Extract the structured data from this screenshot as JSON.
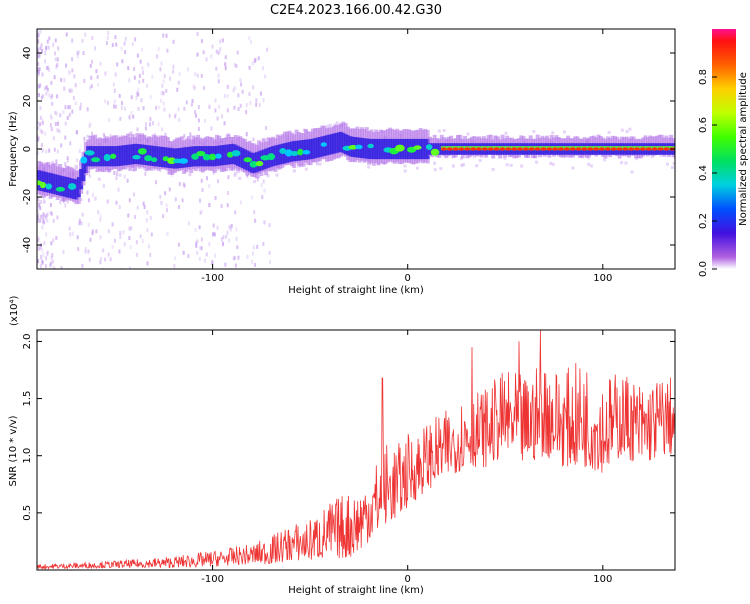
{
  "title": "C2E4.2023.166.00.42.G30",
  "chart_data": [
    {
      "type": "heatmap",
      "xlabel": "Height of straight line (km)",
      "ylabel": "Frequency (Hz)",
      "xlim": [
        -190,
        137
      ],
      "ylim": [
        -50,
        50
      ],
      "xticks": [
        -100,
        0,
        100
      ],
      "yticks": [
        -40,
        -20,
        0,
        20,
        40
      ],
      "colorbar": {
        "label": "Normalized spectral amplitude",
        "range": [
          0,
          1
        ],
        "ticks": [
          0.0,
          0.2,
          0.4,
          0.6,
          0.8
        ],
        "colormap": "rainbow"
      },
      "ridge": {
        "x": [
          -190,
          -180,
          -170,
          -165,
          -160,
          -150,
          -140,
          -130,
          -120,
          -110,
          -100,
          -90,
          -80,
          -70,
          -60,
          -50,
          -40,
          -35,
          -30,
          -20,
          -10,
          0,
          10,
          20,
          40,
          60,
          80,
          100,
          120,
          137
        ],
        "y": [
          -13,
          -15,
          -17,
          -3,
          -3,
          -3,
          -2,
          -3,
          -4,
          -3,
          -3,
          -2,
          -6,
          -3,
          -1,
          0,
          2,
          3,
          1,
          0,
          0,
          0,
          0,
          0,
          0,
          0,
          0,
          0,
          0,
          0
        ]
      }
    },
    {
      "type": "line",
      "xlabel": "Height of straight line (km)",
      "ylabel": "SNR (10 * v/v)",
      "y_multiplier": "(x10⁴)",
      "xlim": [
        -190,
        137
      ],
      "ylim": [
        0,
        2.1
      ],
      "xticks": [
        -100,
        0,
        100
      ],
      "yticks": [
        0.5,
        1.0,
        1.5,
        2.0
      ],
      "line_color": "#ee3333",
      "envelope": {
        "x": [
          -190,
          -150,
          -120,
          -100,
          -80,
          -70,
          -60,
          -50,
          -40,
          -30,
          -25,
          -20,
          -15,
          -10,
          -5,
          0,
          10,
          20,
          30,
          40,
          50,
          60,
          70,
          80,
          90,
          100,
          110,
          120,
          130,
          137
        ],
        "low": [
          0.01,
          0.02,
          0.02,
          0.03,
          0.05,
          0.05,
          0.08,
          0.08,
          0.1,
          0.1,
          0.15,
          0.25,
          0.3,
          0.4,
          0.45,
          0.55,
          0.7,
          0.8,
          0.9,
          0.9,
          1.0,
          0.9,
          1.0,
          0.9,
          0.9,
          0.85,
          1.0,
          0.9,
          1.0,
          1.0
        ],
        "high": [
          0.05,
          0.08,
          0.12,
          0.17,
          0.23,
          0.3,
          0.4,
          0.45,
          0.6,
          0.7,
          0.75,
          0.85,
          1.0,
          1.15,
          1.1,
          1.2,
          1.3,
          1.4,
          1.55,
          1.6,
          1.75,
          1.7,
          1.85,
          1.75,
          1.85,
          1.7,
          1.75,
          1.65,
          1.7,
          1.7
        ]
      },
      "peaks": [
        {
          "x": -13,
          "y": 1.68
        },
        {
          "x": 33,
          "y": 1.95
        },
        {
          "x": 68,
          "y": 2.1
        },
        {
          "x": 57,
          "y": 2.0
        }
      ]
    }
  ]
}
